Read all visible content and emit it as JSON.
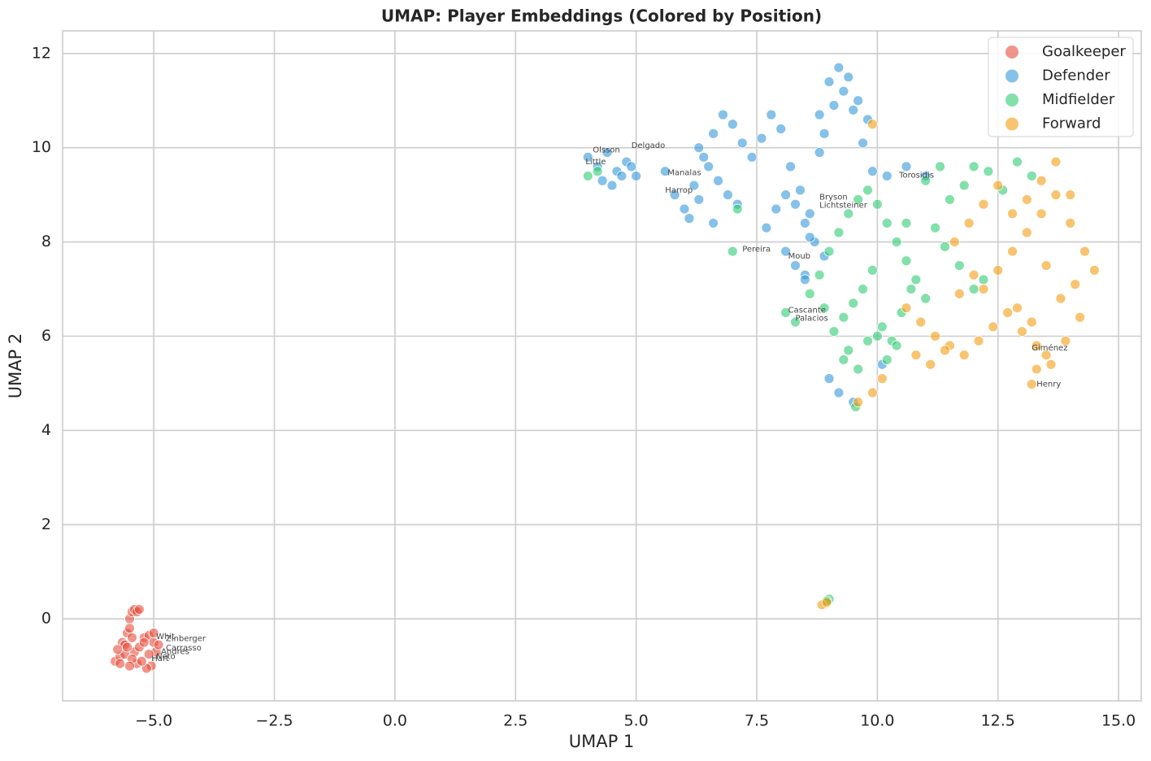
{
  "chart_data": {
    "type": "scatter",
    "title": "UMAP: Player Embeddings (Colored by Position)",
    "x_label": "UMAP 1",
    "y_label": "UMAP 2",
    "xlim": [
      -6.89,
      15.47
    ],
    "ylim": [
      -1.74,
      12.48
    ],
    "xticks": [
      {
        "value": -5,
        "label": "−5.0"
      },
      {
        "value": -2.5,
        "label": "−2.5"
      },
      {
        "value": 0,
        "label": "0.0"
      },
      {
        "value": 2.5,
        "label": "2.5"
      },
      {
        "value": 5,
        "label": "5.0"
      },
      {
        "value": 7.5,
        "label": "7.5"
      },
      {
        "value": 10,
        "label": "10.0"
      },
      {
        "value": 12.5,
        "label": "12.5"
      },
      {
        "value": 15,
        "label": "15.0"
      }
    ],
    "yticks": [
      0,
      2,
      4,
      6,
      8,
      10,
      12
    ],
    "grid": true,
    "legend": "upper-right",
    "series": [
      {
        "name": "Goalkeeper",
        "color": "#e74c3c",
        "x": [
          -5.8,
          -5.7,
          -5.65,
          -5.6,
          -5.55,
          -5.5,
          -5.45,
          -5.4,
          -5.35,
          -5.3,
          -5.5,
          -5.45,
          -5.4,
          -5.35,
          -5.6,
          -5.55,
          -5.2,
          -5.1,
          -5.0,
          -4.95,
          -5.05,
          -5.15,
          -5.25,
          -5.3,
          -5.0,
          -4.9,
          -5.1,
          -5.2,
          -5.45,
          -5.5,
          -5.7,
          -5.75
        ],
        "values": [
          -0.9,
          -0.8,
          -0.5,
          -0.55,
          -0.3,
          0.0,
          0.15,
          0.2,
          0.15,
          0.2,
          -0.2,
          -0.4,
          -0.7,
          -0.95,
          -0.75,
          -0.6,
          -0.4,
          -0.35,
          -0.5,
          -0.7,
          -1.0,
          -1.05,
          -0.9,
          -0.6,
          -0.3,
          -0.55,
          -0.75,
          -0.5,
          -0.85,
          -1.0,
          -0.95,
          -0.65
        ]
      },
      {
        "name": "Defender",
        "color": "#3498db",
        "x": [
          4.0,
          4.2,
          4.4,
          4.6,
          4.8,
          4.3,
          4.5,
          4.7,
          4.9,
          5.0,
          5.6,
          5.8,
          6.0,
          6.2,
          6.4,
          6.6,
          6.8,
          7.0,
          7.2,
          6.3,
          6.5,
          6.7,
          6.9,
          7.1,
          6.1,
          6.3,
          6.6,
          7.4,
          7.6,
          7.8,
          8.0,
          8.2,
          8.4,
          8.6,
          7.7,
          7.9,
          8.1,
          8.3,
          8.5,
          8.7,
          8.9,
          8.1,
          8.3,
          8.5,
          8.6,
          8.8,
          9.0,
          9.2,
          9.4,
          9.6,
          9.8,
          8.9,
          9.1,
          9.3,
          9.5,
          9.7,
          9.9,
          10.2,
          10.6,
          11.0,
          9.0,
          9.2,
          9.5,
          10.1,
          8.8,
          8.5
        ],
        "values": [
          9.8,
          9.6,
          9.9,
          9.5,
          9.7,
          9.3,
          9.2,
          9.4,
          9.6,
          9.4,
          9.5,
          9.0,
          8.7,
          9.2,
          9.8,
          10.3,
          10.7,
          10.5,
          10.1,
          10.0,
          9.6,
          9.3,
          9.0,
          8.8,
          8.5,
          8.9,
          8.4,
          9.8,
          10.2,
          10.7,
          10.4,
          9.6,
          9.1,
          8.6,
          8.3,
          8.7,
          9.0,
          8.8,
          8.4,
          8.0,
          7.7,
          7.8,
          7.5,
          7.3,
          8.1,
          10.7,
          11.4,
          11.7,
          11.5,
          11.0,
          10.6,
          10.3,
          10.9,
          11.2,
          10.8,
          10.1,
          9.5,
          9.4,
          9.6,
          9.4,
          5.1,
          4.8,
          4.6,
          5.4,
          9.9,
          7.2
        ]
      },
      {
        "name": "Midfielder",
        "color": "#2ecc71",
        "x": [
          4.0,
          4.2,
          7.0,
          7.1,
          8.1,
          8.3,
          8.6,
          8.8,
          9.0,
          9.2,
          9.4,
          9.6,
          9.8,
          10.0,
          10.2,
          10.4,
          10.6,
          10.8,
          11.0,
          9.1,
          9.3,
          9.5,
          9.7,
          9.9,
          10.1,
          10.3,
          10.5,
          10.7,
          9.4,
          9.6,
          9.8,
          10.0,
          10.2,
          10.4,
          11.2,
          11.5,
          11.8,
          12.0,
          12.3,
          12.6,
          12.9,
          13.2,
          11.4,
          11.7,
          12.0,
          11.0,
          11.3,
          9.0,
          8.95,
          9.55,
          9.3,
          8.9,
          10.6,
          12.2
        ],
        "values": [
          9.4,
          9.5,
          7.8,
          8.7,
          6.5,
          6.3,
          6.9,
          7.3,
          7.8,
          8.2,
          8.6,
          8.9,
          9.1,
          8.8,
          8.4,
          8.0,
          7.6,
          7.2,
          6.8,
          6.1,
          6.4,
          6.7,
          7.0,
          7.4,
          6.2,
          5.9,
          6.5,
          7.0,
          5.7,
          5.3,
          5.9,
          6.0,
          5.5,
          5.8,
          8.3,
          8.9,
          9.2,
          9.6,
          9.5,
          9.1,
          9.7,
          9.4,
          7.9,
          7.5,
          7.0,
          9.3,
          9.6,
          0.42,
          0.38,
          4.5,
          5.5,
          6.6,
          8.4,
          7.2
        ]
      },
      {
        "name": "Forward",
        "color": "#f39c12",
        "x": [
          8.85,
          8.95,
          9.6,
          9.9,
          10.1,
          9.9,
          10.6,
          10.9,
          11.2,
          11.5,
          11.8,
          12.1,
          12.4,
          12.7,
          13.0,
          13.3,
          13.6,
          13.9,
          14.2,
          14.5,
          12.2,
          12.5,
          12.8,
          13.1,
          13.4,
          13.7,
          14.0,
          14.3,
          11.6,
          11.9,
          12.2,
          12.5,
          12.8,
          13.1,
          13.4,
          13.7,
          14.0,
          10.8,
          11.1,
          11.4,
          11.7,
          12.0,
          13.2,
          13.3,
          13.5,
          13.8,
          14.1,
          12.9,
          13.2,
          13.5
        ],
        "values": [
          0.3,
          0.35,
          4.6,
          4.8,
          5.1,
          10.5,
          6.6,
          6.3,
          6.0,
          5.8,
          5.6,
          5.9,
          6.2,
          6.5,
          6.1,
          5.8,
          5.4,
          5.9,
          6.4,
          7.4,
          7.0,
          7.4,
          7.8,
          8.2,
          8.6,
          9.0,
          8.4,
          7.8,
          8.0,
          8.4,
          8.8,
          9.2,
          8.6,
          8.9,
          9.3,
          9.7,
          9.0,
          5.6,
          5.4,
          5.7,
          6.9,
          7.3,
          4.98,
          5.3,
          5.6,
          6.8,
          7.1,
          6.6,
          6.3,
          7.5
        ]
      }
    ],
    "annotations": [
      {
        "text": "Olsson",
        "x": 4.1,
        "y": 9.95
      },
      {
        "text": "Delgado",
        "x": 4.9,
        "y": 10.05
      },
      {
        "text": "Little",
        "x": 3.95,
        "y": 9.7
      },
      {
        "text": "Manalas",
        "x": 5.65,
        "y": 9.47
      },
      {
        "text": "Harrop",
        "x": 5.6,
        "y": 9.1
      },
      {
        "text": "Bryson",
        "x": 8.8,
        "y": 8.95
      },
      {
        "text": "Lichtsteiner",
        "x": 8.8,
        "y": 8.78
      },
      {
        "text": "Torosidis",
        "x": 10.45,
        "y": 9.42
      },
      {
        "text": "Pereira",
        "x": 7.2,
        "y": 7.85
      },
      {
        "text": "Moub",
        "x": 8.15,
        "y": 7.7
      },
      {
        "text": "Cascante",
        "x": 8.15,
        "y": 6.55
      },
      {
        "text": "Palacios",
        "x": 8.3,
        "y": 6.38
      },
      {
        "text": "Giménez",
        "x": 13.2,
        "y": 5.75
      },
      {
        "text": "Henry",
        "x": 13.3,
        "y": 4.98
      },
      {
        "text": "Whit",
        "x": -4.95,
        "y": -0.38
      },
      {
        "text": "Zinberger",
        "x": -4.75,
        "y": -0.42
      },
      {
        "text": "Carrasso",
        "x": -4.75,
        "y": -0.62
      },
      {
        "text": "Andres",
        "x": -4.85,
        "y": -0.7
      },
      {
        "text": "Neto",
        "x": -4.95,
        "y": -0.8
      },
      {
        "text": "Hart",
        "x": -5.05,
        "y": -0.84
      }
    ]
  }
}
